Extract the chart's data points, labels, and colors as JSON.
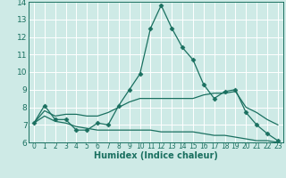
{
  "xlabel": "Humidex (Indice chaleur)",
  "ylabel": "",
  "xlim": [
    -0.5,
    23.5
  ],
  "ylim": [
    6,
    14
  ],
  "yticks": [
    6,
    7,
    8,
    9,
    10,
    11,
    12,
    13,
    14
  ],
  "xticks": [
    0,
    1,
    2,
    3,
    4,
    5,
    6,
    7,
    8,
    9,
    10,
    11,
    12,
    13,
    14,
    15,
    16,
    17,
    18,
    19,
    20,
    21,
    22,
    23
  ],
  "bg_color": "#ceeae6",
  "grid_color": "#ffffff",
  "line_color": "#1a7060",
  "lines": [
    {
      "x": [
        0,
        1,
        2,
        3,
        4,
        5,
        6,
        7,
        8,
        9,
        10,
        11,
        12,
        13,
        14,
        15,
        16,
        17,
        18,
        19,
        20,
        21,
        22,
        23
      ],
      "y": [
        7.1,
        8.1,
        7.3,
        7.3,
        6.7,
        6.7,
        7.1,
        7.0,
        8.1,
        9.0,
        9.9,
        12.5,
        13.8,
        12.5,
        11.4,
        10.7,
        9.3,
        8.5,
        8.9,
        9.0,
        7.7,
        7.0,
        6.5,
        6.1
      ],
      "marker": "D",
      "markersize": 2.5
    },
    {
      "x": [
        0,
        1,
        2,
        3,
        4,
        5,
        6,
        7,
        8,
        9,
        10,
        11,
        12,
        13,
        14,
        15,
        16,
        17,
        18,
        19,
        20,
        21,
        22,
        23
      ],
      "y": [
        7.1,
        7.8,
        7.5,
        7.6,
        7.6,
        7.5,
        7.5,
        7.7,
        8.0,
        8.3,
        8.5,
        8.5,
        8.5,
        8.5,
        8.5,
        8.5,
        8.7,
        8.8,
        8.8,
        8.9,
        8.0,
        7.7,
        7.3,
        7.0
      ],
      "marker": null,
      "markersize": 0
    },
    {
      "x": [
        0,
        1,
        2,
        3,
        4,
        5,
        6,
        7,
        8,
        9,
        10,
        11,
        12,
        13,
        14,
        15,
        16,
        17,
        18,
        19,
        20,
        21,
        22,
        23
      ],
      "y": [
        7.1,
        7.5,
        7.2,
        7.1,
        6.9,
        6.8,
        6.7,
        6.7,
        6.7,
        6.7,
        6.7,
        6.7,
        6.6,
        6.6,
        6.6,
        6.6,
        6.5,
        6.4,
        6.4,
        6.3,
        6.2,
        6.1,
        6.1,
        6.0
      ],
      "marker": null,
      "markersize": 0
    }
  ]
}
